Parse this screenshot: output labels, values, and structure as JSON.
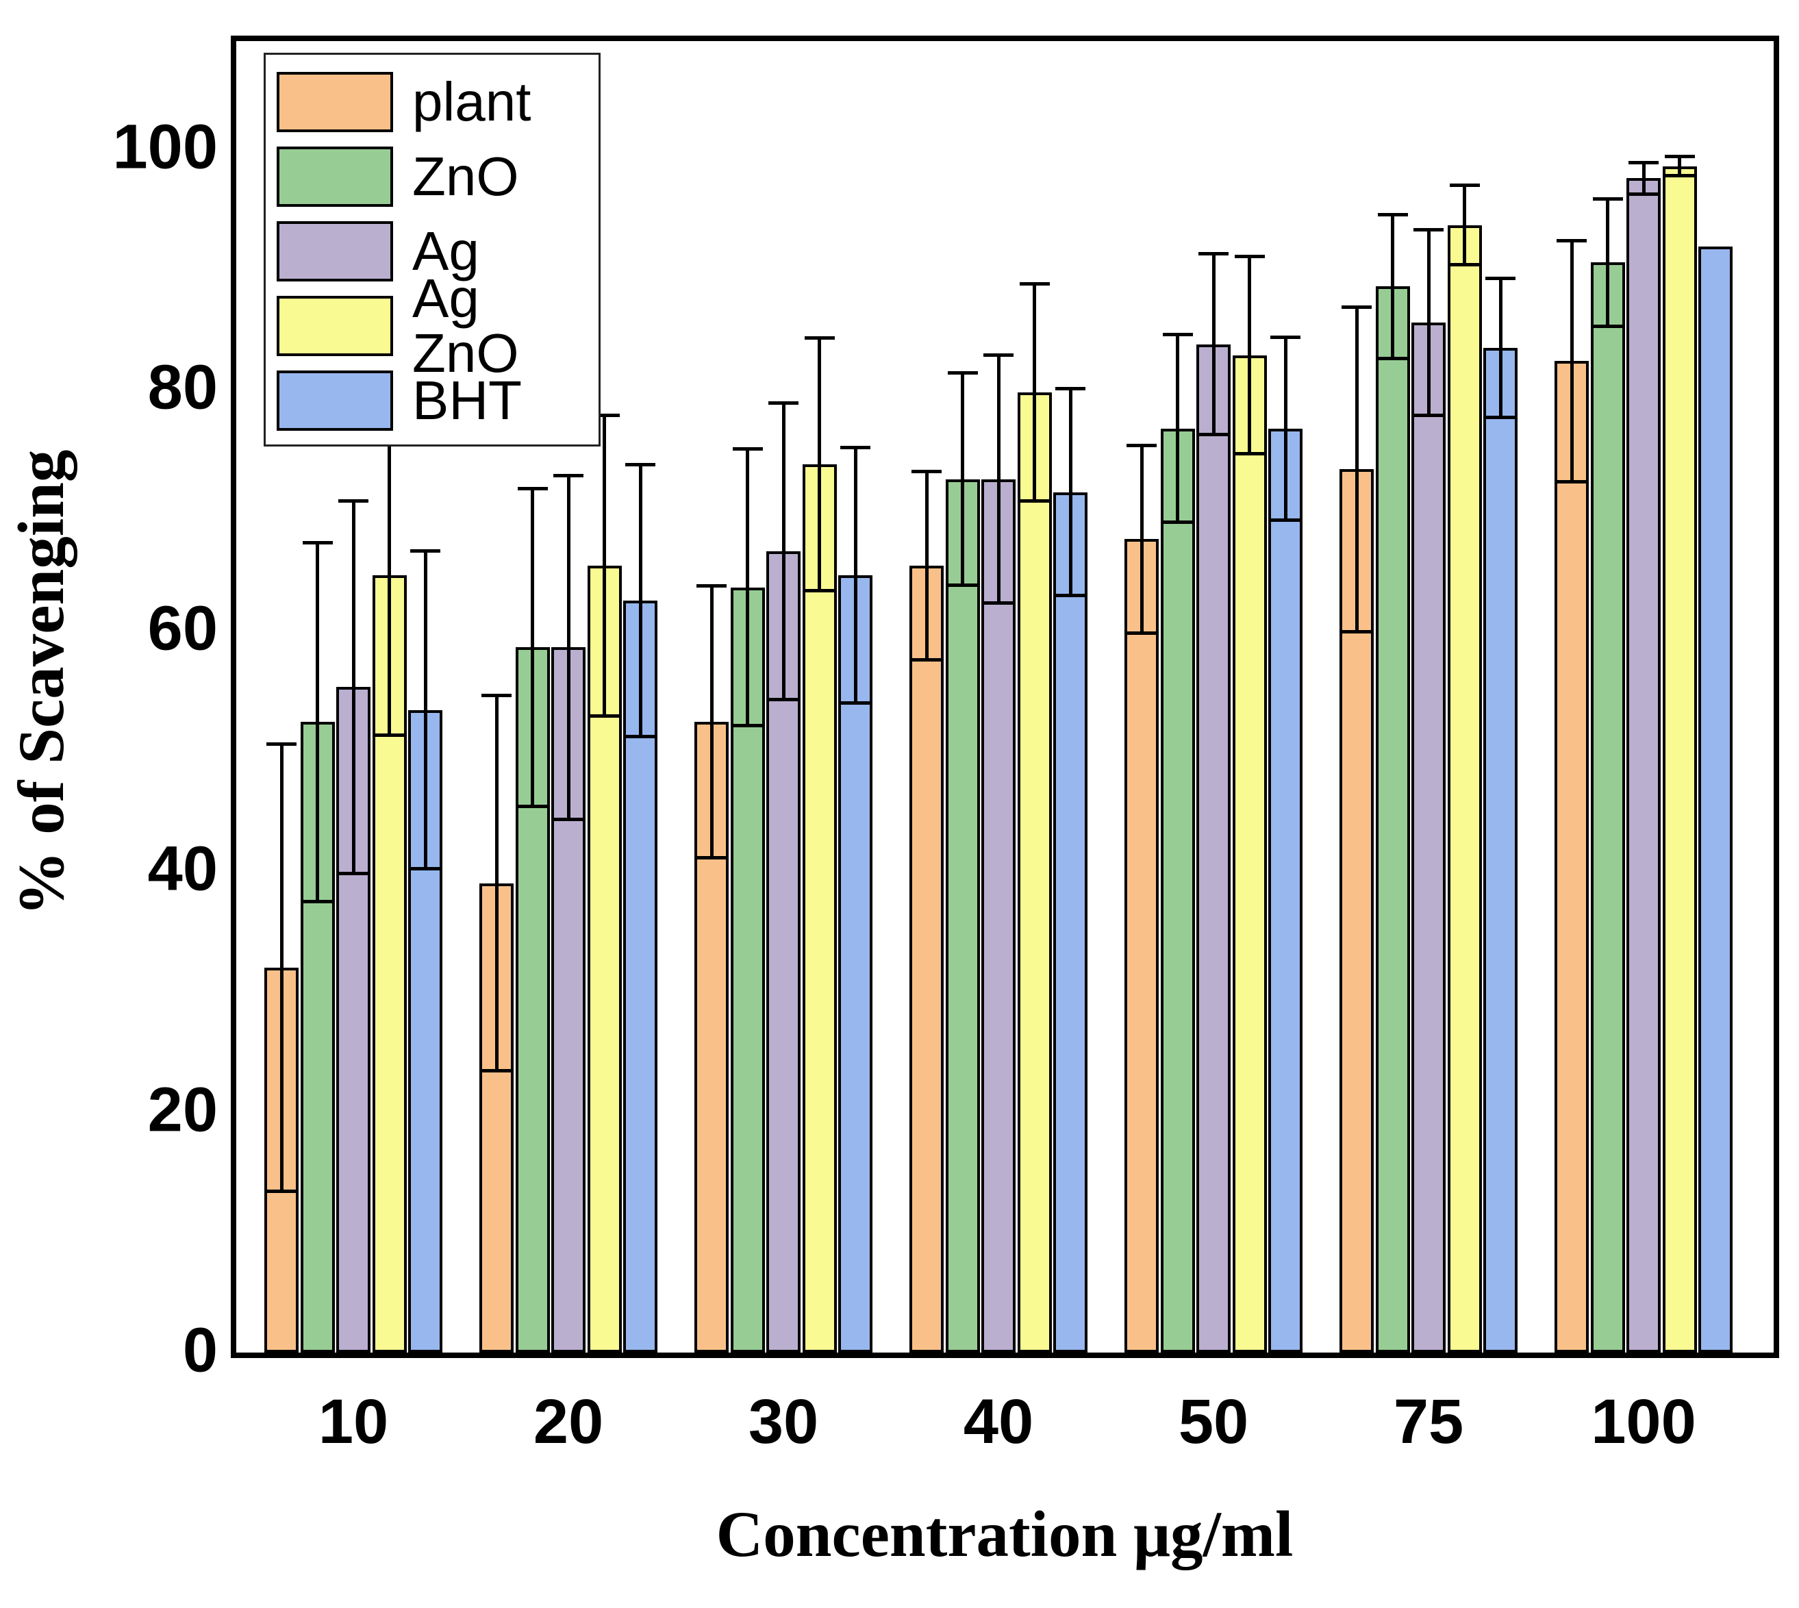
{
  "chart_data": {
    "type": "bar",
    "title": "",
    "xlabel": "Concentration μg/ml",
    "ylabel": "% of Scavenging",
    "categories": [
      "10",
      "20",
      "30",
      "40",
      "50",
      "75",
      "100"
    ],
    "yticks": [
      0,
      20,
      40,
      60,
      80,
      100
    ],
    "ylim": [
      0,
      109
    ],
    "grid": "off",
    "legend_position": "top-left",
    "error_bars": "symmetric, black caps; last BHT bar has none",
    "series": [
      {
        "name": "plant",
        "color": "#F9C189",
        "values": [
          32.0,
          39.0,
          52.4,
          65.4,
          67.6,
          73.4,
          82.4
        ],
        "errors": [
          18.6,
          15.6,
          11.3,
          7.8,
          7.8,
          13.5,
          10.0
        ]
      },
      {
        "name": "ZnO",
        "color": "#97CD94",
        "values": [
          52.4,
          58.6,
          63.6,
          72.6,
          76.8,
          88.6,
          90.6
        ],
        "errors": [
          14.9,
          13.2,
          11.5,
          8.8,
          7.8,
          6.0,
          5.3
        ]
      },
      {
        "name": "Ag",
        "color": "#BBAFD0",
        "values": [
          55.3,
          58.6,
          66.6,
          72.6,
          83.8,
          85.6,
          97.6
        ],
        "errors": [
          15.5,
          14.3,
          12.3,
          10.3,
          7.5,
          7.7,
          1.3
        ]
      },
      {
        "name": "Ag ZnO",
        "color": "#FAFA93",
        "values": [
          64.6,
          65.4,
          73.8,
          79.8,
          82.9,
          93.7,
          98.6
        ],
        "errors": [
          13.3,
          12.5,
          10.5,
          9.0,
          8.2,
          3.3,
          0.8
        ]
      },
      {
        "name": "BHT",
        "color": "#97B7EE",
        "values": [
          53.4,
          62.5,
          64.6,
          71.5,
          76.8,
          83.5,
          91.9
        ],
        "errors": [
          13.2,
          11.3,
          10.6,
          8.6,
          7.6,
          5.8,
          null
        ]
      }
    ],
    "colors": {
      "bar_border": "#000000",
      "frame": "#000000",
      "background": "#FFFFFF",
      "error": "#000000"
    }
  }
}
